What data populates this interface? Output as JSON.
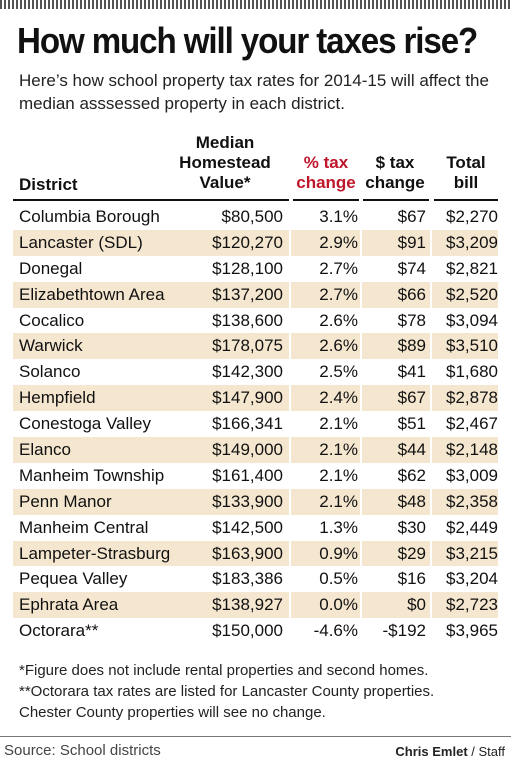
{
  "title": "How much will your taxes rise?",
  "subtitle": "Here’s how school property tax rates for 2014-15 will affect the median asssessed property in each district.",
  "headers": {
    "district": "District",
    "median_line1": "Median",
    "median_line2": "Homestead",
    "median_line3": "Value*",
    "pct_line1": "% tax",
    "pct_line2": "change",
    "dtax_line1": "$ tax",
    "dtax_line2": "change",
    "total_line1": "Total",
    "total_line2": "bill"
  },
  "rows": [
    {
      "district": "Columbia Borough",
      "median": "$80,500",
      "pct": "3.1%",
      "dtax": "$67",
      "total": "$2,270"
    },
    {
      "district": "Lancaster (SDL)",
      "median": "$120,270",
      "pct": "2.9%",
      "dtax": "$91",
      "total": "$3,209"
    },
    {
      "district": "Donegal",
      "median": "$128,100",
      "pct": "2.7%",
      "dtax": "$74",
      "total": "$2,821"
    },
    {
      "district": "Elizabethtown Area",
      "median": "$137,200",
      "pct": "2.7%",
      "dtax": "$66",
      "total": "$2,520"
    },
    {
      "district": "Cocalico",
      "median": "$138,600",
      "pct": "2.6%",
      "dtax": "$78",
      "total": "$3,094"
    },
    {
      "district": "Warwick",
      "median": "$178,075",
      "pct": "2.6%",
      "dtax": "$89",
      "total": "$3,510"
    },
    {
      "district": "Solanco",
      "median": "$142,300",
      "pct": "2.5%",
      "dtax": "$41",
      "total": "$1,680"
    },
    {
      "district": "Hempfield",
      "median": "$147,900",
      "pct": "2.4%",
      "dtax": "$67",
      "total": "$2,878"
    },
    {
      "district": "Conestoga Valley",
      "median": "$166,341",
      "pct": "2.1%",
      "dtax": "$51",
      "total": "$2,467"
    },
    {
      "district": "Elanco",
      "median": "$149,000",
      "pct": "2.1%",
      "dtax": "$44",
      "total": "$2,148"
    },
    {
      "district": "Manheim Township",
      "median": "$161,400",
      "pct": "2.1%",
      "dtax": "$62",
      "total": "$3,009"
    },
    {
      "district": "Penn Manor",
      "median": "$133,900",
      "pct": "2.1%",
      "dtax": "$48",
      "total": "$2,358"
    },
    {
      "district": "Manheim Central",
      "median": "$142,500",
      "pct": "1.3%",
      "dtax": "$30",
      "total": "$2,449"
    },
    {
      "district": "Lampeter-Strasburg",
      "median": "$163,900",
      "pct": "0.9%",
      "dtax": "$29",
      "total": "$3,215"
    },
    {
      "district": "Pequea Valley",
      "median": "$183,386",
      "pct": "0.5%",
      "dtax": "$16",
      "total": "$3,204"
    },
    {
      "district": "Ephrata Area",
      "median": "$138,927",
      "pct": "0.0%",
      "dtax": "$0",
      "total": "$2,723"
    },
    {
      "district": "Octorara**",
      "median": "$150,000",
      "pct": "-4.6%",
      "dtax": "-$192",
      "total": "$3,965"
    }
  ],
  "notes": [
    "*Figure does not include rental properties and second homes.",
    "**Octorara tax rates are listed for Lancaster County properties.",
    "Chester County properties will see no change."
  ],
  "source": "Source: School districts",
  "credit_name": "Chris Emlet",
  "credit_role": " / Staff",
  "colors": {
    "row_shade": "#f5e7cf",
    "pct_header": "#c0162b",
    "text": "#111111"
  }
}
